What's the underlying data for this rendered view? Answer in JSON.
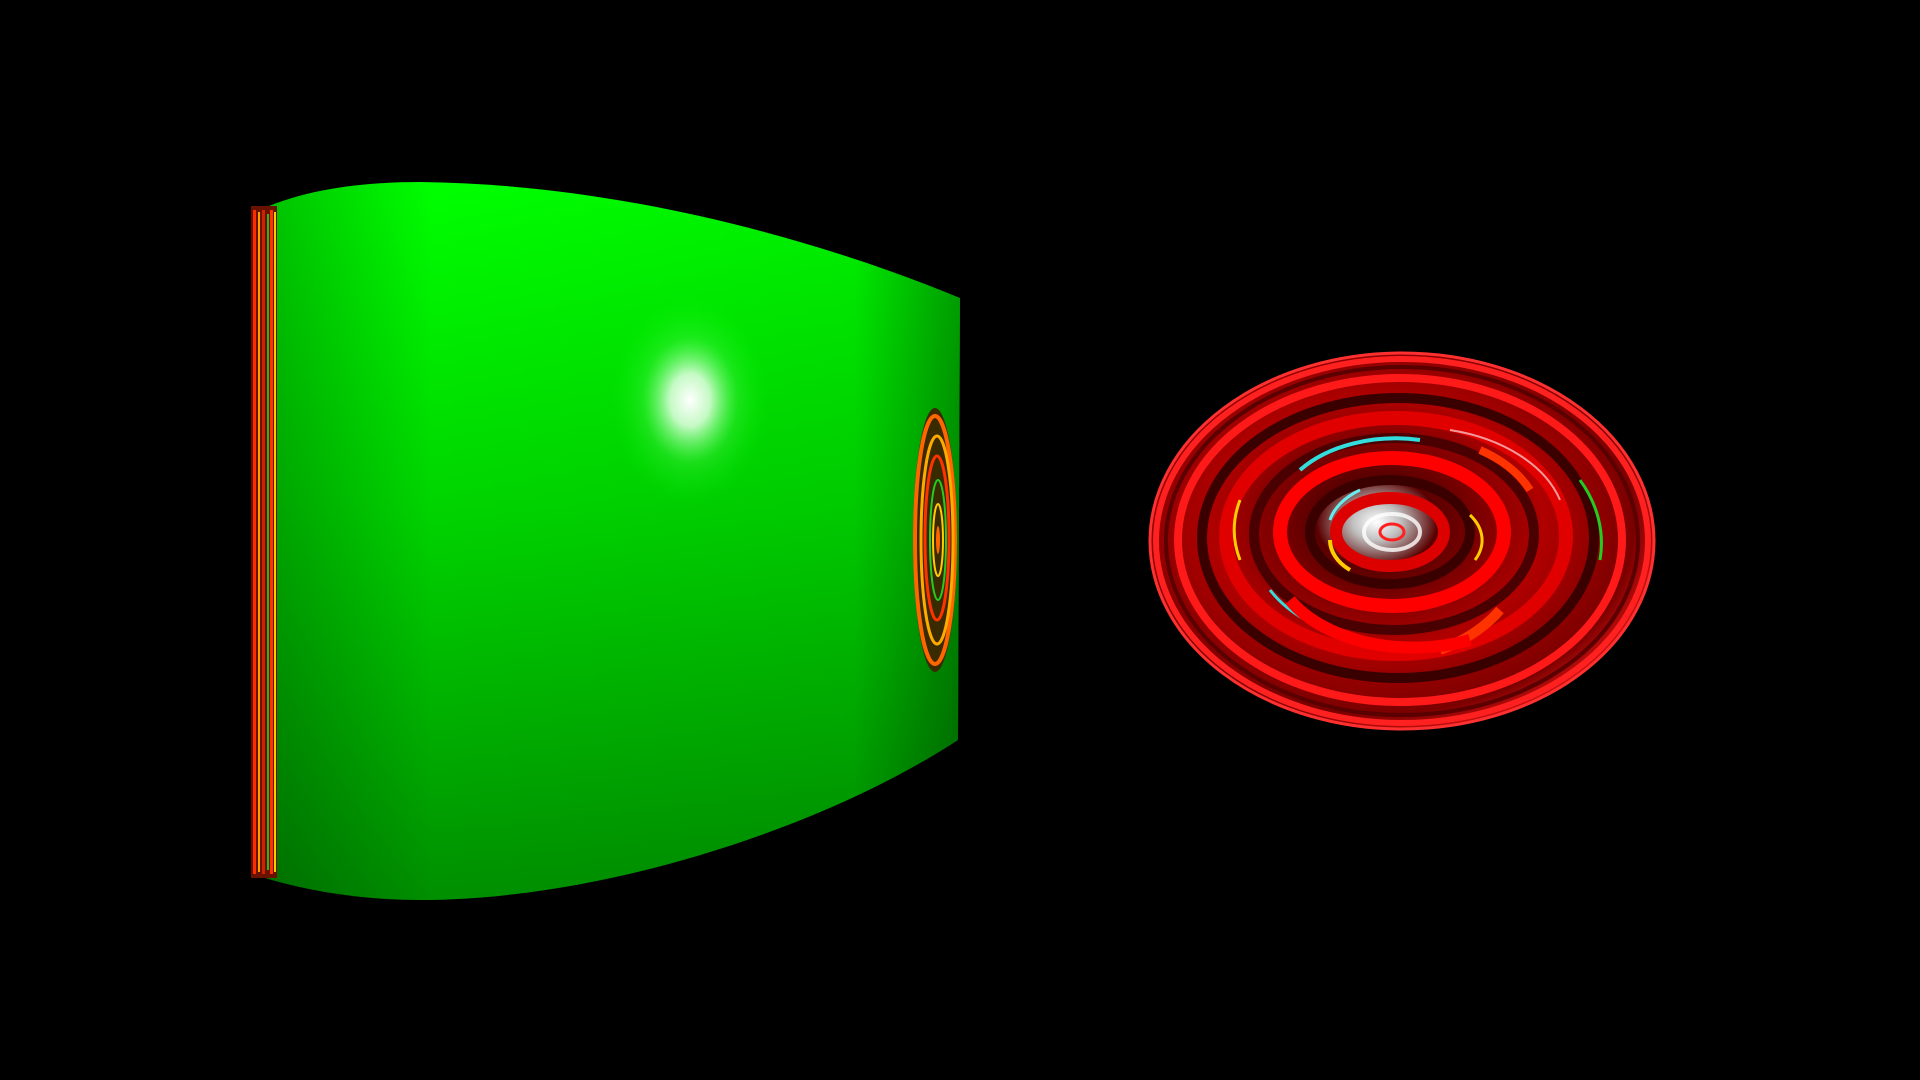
{
  "scene": {
    "background_color": "#000000",
    "objects": [
      {
        "name": "cylinder",
        "shape": "cylinder",
        "view": "side",
        "base_color": "#00e000",
        "highlight_color": "#ffffff",
        "edge_texture_colors": [
          "#ff2200",
          "#ff9900",
          "#22cc22",
          "#ffcc00"
        ]
      },
      {
        "name": "disc",
        "shape": "disc",
        "view": "oblique-top",
        "base_color": "#cc0000",
        "highlight_color": "#ffffff",
        "accent_colors": [
          "#33dddd",
          "#ffcc00",
          "#22cc22",
          "#ff3300"
        ]
      }
    ]
  }
}
